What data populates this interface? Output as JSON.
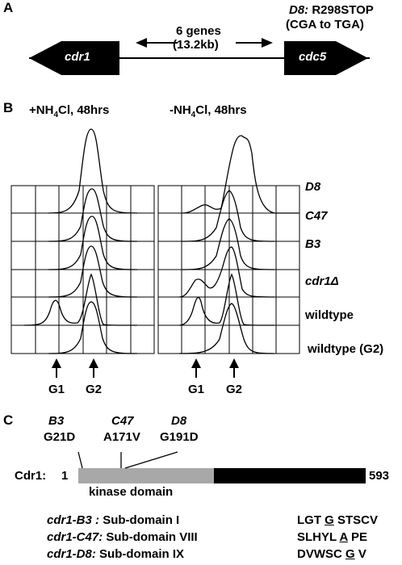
{
  "panel_a": {
    "letter": "A",
    "gene_left": "cdr1",
    "gene_right": "cdc5",
    "between_line1": "6 genes",
    "between_line2": "(13.2kb)",
    "mutation_allele": "D8:",
    "mutation_change": "R298STOP",
    "mutation_codon": "(CGA to TGA)"
  },
  "panel_b": {
    "letter": "B",
    "left_condition_prefix": "+NH",
    "left_condition_sub": "4",
    "left_condition_suffix": "Cl, 48hrs",
    "right_condition_prefix": "-NH",
    "right_condition_sub": "4",
    "right_condition_suffix": "Cl, 48hrs",
    "rows": [
      {
        "label": "D8",
        "italic": true
      },
      {
        "label": "C47",
        "italic": true
      },
      {
        "label": "B3",
        "italic": true
      },
      {
        "label": "cdr1Δ",
        "italic": true
      },
      {
        "label": "wildtype",
        "italic": false
      },
      {
        "label": "wildtype (G2)",
        "italic": false
      }
    ],
    "g1_label": "G1",
    "g2_label": "G2"
  },
  "panel_c": {
    "letter": "C",
    "mutants": [
      {
        "allele": "B3",
        "change": "G21D"
      },
      {
        "allele": "C47",
        "change": "A171V"
      },
      {
        "allele": "D8",
        "change": "G191D"
      }
    ],
    "protein_label": "Cdr1:",
    "start_residue": "1",
    "end_residue": "593",
    "kinase_domain_label": "kinase domain",
    "subdomains": [
      {
        "allele": "cdr1-B3 :",
        "subdomain": "Sub-domain I",
        "seq_pre": "LGT ",
        "seq_mut": "G",
        "seq_post": " STSCV"
      },
      {
        "allele": "cdr1-C47:",
        "subdomain": "Sub-domain VIII",
        "seq_pre": "SLHYL ",
        "seq_mut": "A",
        "seq_post": " PE"
      },
      {
        "allele": "cdr1-D8:",
        "subdomain": "Sub-domain IX",
        "seq_pre": "DVWSC ",
        "seq_mut": "G",
        "seq_post": " V"
      }
    ]
  }
}
